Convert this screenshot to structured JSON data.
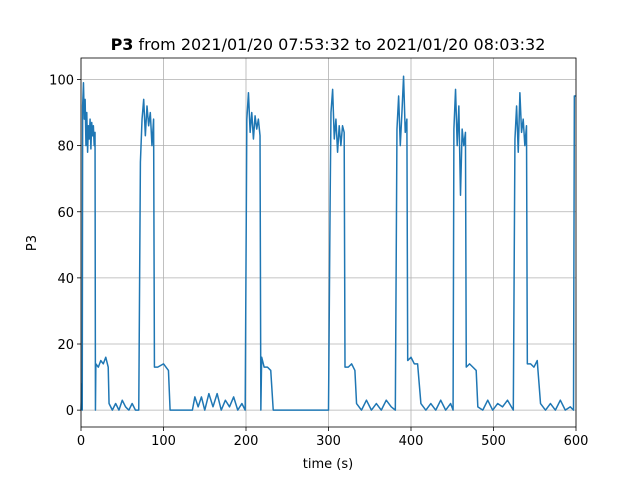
{
  "chart_data": {
    "type": "line",
    "title_bold": "P3",
    "title": "from 2021/01/20 07:53:32 to 2021/01/20 08:03:32",
    "xlabel": "time (s)",
    "ylabel": "P3",
    "xlim": [
      0,
      600
    ],
    "xticks": [
      0,
      100,
      200,
      300,
      400,
      500,
      600
    ],
    "ylim": [
      -5.1,
      106.5
    ],
    "yticks": [
      0,
      20,
      40,
      60,
      80,
      100
    ],
    "grid": true,
    "series": [
      {
        "color": "#1f77b4",
        "x": [
          0,
          1,
          1.5,
          2,
          3,
          4,
          5,
          6,
          7,
          8,
          9,
          10,
          11,
          12,
          13,
          14,
          15,
          16,
          17,
          17.5,
          18,
          21,
          24,
          27,
          30,
          33,
          34,
          38,
          42,
          46,
          50,
          54,
          58,
          62,
          66,
          70,
          72,
          74,
          76,
          78,
          80,
          82,
          84,
          86,
          88,
          89,
          93,
          100,
          106,
          108,
          120,
          135,
          138,
          142,
          146,
          150,
          155,
          160,
          165,
          170,
          175,
          180,
          185,
          190,
          195,
          199,
          201,
          203,
          205,
          207,
          209,
          211,
          213,
          215,
          217,
          218,
          219,
          222,
          226,
          230,
          233,
          250,
          270,
          290,
          300,
          302,
          303,
          305,
          307,
          309,
          311,
          313,
          315,
          317,
          319,
          320,
          324,
          328,
          332,
          334,
          340,
          346,
          352,
          358,
          364,
          370,
          376,
          381,
          383,
          385,
          387,
          389,
          391,
          393,
          395,
          396,
          400,
          404,
          408,
          412,
          418,
          424,
          430,
          436,
          442,
          448,
          451,
          452,
          454,
          456,
          458,
          460,
          462,
          464,
          466,
          467,
          471,
          475,
          479,
          481,
          487,
          493,
          499,
          505,
          511,
          517,
          524,
          526,
          528,
          530,
          532,
          534,
          536,
          538,
          540,
          541,
          545,
          549,
          553,
          557,
          563,
          569,
          575,
          581,
          587,
          593,
          597,
          598,
          600
        ],
        "values": [
          0,
          8,
          0,
          92,
          99,
          88,
          94,
          80,
          90,
          78,
          86,
          82,
          88,
          79,
          87,
          83,
          86,
          80,
          84,
          0,
          14,
          13,
          15,
          14,
          16,
          13,
          2,
          0,
          2,
          0,
          3,
          1,
          0,
          2,
          0,
          0,
          75,
          88,
          94,
          83,
          92,
          86,
          90,
          80,
          88,
          13,
          13,
          14,
          12,
          0,
          0,
          0,
          4,
          1,
          4,
          0,
          5,
          1,
          5,
          0,
          3,
          1,
          4,
          0,
          2,
          0,
          88,
          96,
          84,
          90,
          82,
          89,
          85,
          88,
          83,
          0,
          16,
          13,
          13,
          12,
          0,
          0,
          0,
          0,
          0,
          64,
          90,
          97,
          82,
          88,
          78,
          86,
          80,
          86,
          84,
          13,
          13,
          14,
          12,
          2,
          0,
          3,
          0,
          2,
          0,
          3,
          1,
          0,
          85,
          95,
          80,
          90,
          101,
          84,
          88,
          15,
          16,
          14,
          14,
          2,
          0,
          2,
          0,
          3,
          0,
          2,
          0,
          85,
          97,
          80,
          92,
          65,
          85,
          80,
          84,
          13,
          14,
          13,
          12,
          1,
          0,
          3,
          0,
          2,
          1,
          3,
          0,
          82,
          92,
          78,
          96,
          84,
          88,
          80,
          86,
          14,
          14,
          13,
          15,
          2,
          0,
          2,
          0,
          3,
          0,
          1,
          0,
          95,
          95
        ]
      }
    ]
  }
}
